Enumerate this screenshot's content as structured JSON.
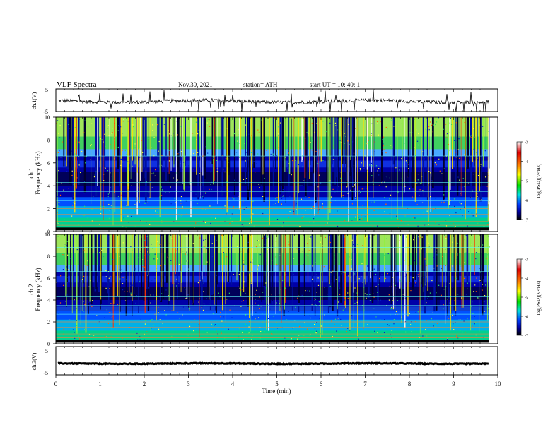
{
  "chart_data": {
    "type": "heatmap",
    "header": {
      "title": "VLF  Spectra",
      "date": "Nov.30, 2021",
      "station": "station= ATH",
      "start": "start  UT  =     10: 40: 1"
    },
    "x_axis": {
      "label": "Time  (min)",
      "range": [
        0,
        10
      ],
      "ticks": [
        "0",
        "1",
        "2",
        "3",
        "4",
        "5",
        "6",
        "7",
        "8",
        "9",
        "10"
      ],
      "data_end_min": 9.8
    },
    "panels": [
      {
        "name": "ch.1(V)",
        "kind": "waveform",
        "ylabel": "ch.1(V)",
        "ylim": [
          -5,
          5
        ],
        "yticks": [
          "5",
          "-5"
        ],
        "baseline": -0.5,
        "color": "#000000"
      },
      {
        "name": "ch.1 spectrogram",
        "kind": "spectrogram",
        "ylabel": [
          "ch.1",
          "Frequency  (kHz)"
        ],
        "ylim": [
          0,
          10
        ],
        "yticks": [
          "0",
          "2",
          "4",
          "6",
          "8",
          "10"
        ],
        "colorbar": {
          "label": "log(PSD)(V²/Hz)",
          "range": [
            -7,
            -3
          ],
          "ticks": [
            "-3",
            "-4",
            "-5",
            "-6",
            "-7"
          ]
        }
      },
      {
        "name": "ch.2 spectrogram",
        "kind": "spectrogram",
        "ylabel": [
          "ch.2",
          "Frequency  (kHz)"
        ],
        "ylim": [
          0,
          10
        ],
        "yticks": [
          "0",
          "2",
          "4",
          "6",
          "8",
          "10"
        ],
        "colorbar": {
          "label": "log(PSD)(V²/Hz)",
          "range": [
            -7,
            -3
          ],
          "ticks": [
            "-3",
            "-4",
            "-5",
            "-6",
            "-7"
          ]
        }
      },
      {
        "name": "ch.3(V)",
        "kind": "waveform",
        "ylabel": "ch.3(V)",
        "ylim": [
          -5,
          5
        ],
        "yticks": [
          "5",
          "-5"
        ],
        "baseline": -1.0,
        "color": "#000000"
      }
    ],
    "colormap": [
      "#ffffff",
      "#e00000",
      "#ff8000",
      "#ffff00",
      "#00e000",
      "#00e0e0",
      "#0040ff",
      "#0000a0",
      "#000000"
    ],
    "grid": false,
    "legend": "none"
  }
}
